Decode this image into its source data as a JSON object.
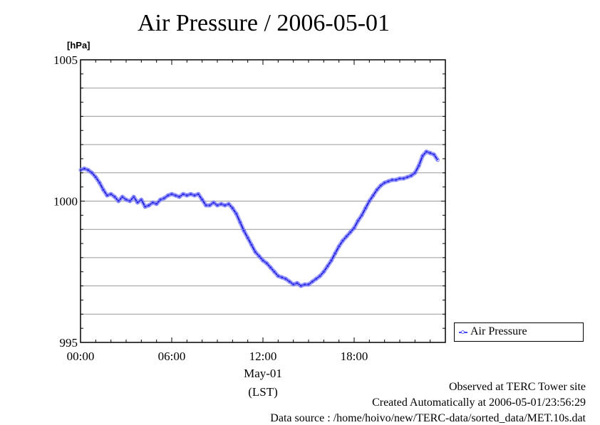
{
  "title": "Air Pressure / 2006-05-01",
  "chart_data": {
    "type": "line",
    "title": "Air Pressure / 2006-05-01",
    "ylabel": "[hPa]",
    "xlabel": "(LST)",
    "x_date_label": "May-01",
    "xlim": [
      0,
      24
    ],
    "ylim": [
      995,
      1005
    ],
    "yticks": [
      995,
      1000,
      1005
    ],
    "ytick_labels": [
      "995",
      "1000",
      "1005"
    ],
    "xticks": [
      0,
      6,
      12,
      18
    ],
    "xtick_labels": [
      "00:00",
      "06:00",
      "12:00",
      "18:00"
    ],
    "grid": true,
    "legend": "right",
    "series": [
      {
        "name": "Air Pressure",
        "color": "#2222dd",
        "x": [
          0,
          0.25,
          0.5,
          0.75,
          1.0,
          1.25,
          1.5,
          1.75,
          2.0,
          2.25,
          2.5,
          2.75,
          3.0,
          3.25,
          3.5,
          3.75,
          4.0,
          4.25,
          4.5,
          4.75,
          5.0,
          5.25,
          5.5,
          5.75,
          6.0,
          6.25,
          6.5,
          6.75,
          7.0,
          7.25,
          7.5,
          7.75,
          8.0,
          8.25,
          8.5,
          8.75,
          9.0,
          9.25,
          9.5,
          9.75,
          10.0,
          10.25,
          10.5,
          10.75,
          11.0,
          11.25,
          11.5,
          11.75,
          12.0,
          12.25,
          12.5,
          12.75,
          13.0,
          13.25,
          13.5,
          13.75,
          14.0,
          14.25,
          14.5,
          14.75,
          15.0,
          15.25,
          15.5,
          15.75,
          16.0,
          16.25,
          16.5,
          16.75,
          17.0,
          17.25,
          17.5,
          17.75,
          18.0,
          18.25,
          18.5,
          18.75,
          19.0,
          19.25,
          19.5,
          19.75,
          20.0,
          20.25,
          20.5,
          20.75,
          21.0,
          21.25,
          21.5,
          21.75,
          22.0,
          22.25,
          22.5,
          22.75,
          23.0,
          23.25,
          23.5
        ],
        "values": [
          1001.1,
          1001.15,
          1001.1,
          1001.0,
          1000.85,
          1000.65,
          1000.4,
          1000.2,
          1000.25,
          1000.15,
          1000.0,
          1000.15,
          1000.05,
          1000.0,
          1000.15,
          999.95,
          1000.05,
          999.8,
          999.85,
          999.95,
          999.9,
          1000.05,
          1000.1,
          1000.2,
          1000.25,
          1000.2,
          1000.15,
          1000.25,
          1000.2,
          1000.25,
          1000.2,
          1000.25,
          1000.05,
          999.85,
          999.85,
          999.95,
          999.85,
          999.9,
          999.85,
          999.9,
          999.75,
          999.55,
          999.25,
          998.95,
          998.7,
          998.45,
          998.2,
          998.05,
          997.9,
          997.8,
          997.65,
          997.5,
          997.35,
          997.3,
          997.25,
          997.15,
          997.05,
          997.1,
          997.0,
          997.05,
          997.05,
          997.15,
          997.25,
          997.35,
          997.5,
          997.7,
          997.9,
          998.15,
          998.4,
          998.6,
          998.75,
          998.9,
          999.05,
          999.3,
          999.5,
          999.75,
          1000.0,
          1000.2,
          1000.4,
          1000.55,
          1000.65,
          1000.7,
          1000.75,
          1000.75,
          1000.8,
          1000.8,
          1000.85,
          1000.9,
          1001.0,
          1001.25,
          1001.6,
          1001.75,
          1001.7,
          1001.65,
          1001.45
        ]
      }
    ]
  },
  "footer": {
    "line1": "Observed at TERC Tower site",
    "line2": "Created Automatically at 2006-05-01/23:56:29",
    "line3": "Data source : /home/hoivo/new/TERC-data/sorted_data/MET.10s.dat"
  }
}
